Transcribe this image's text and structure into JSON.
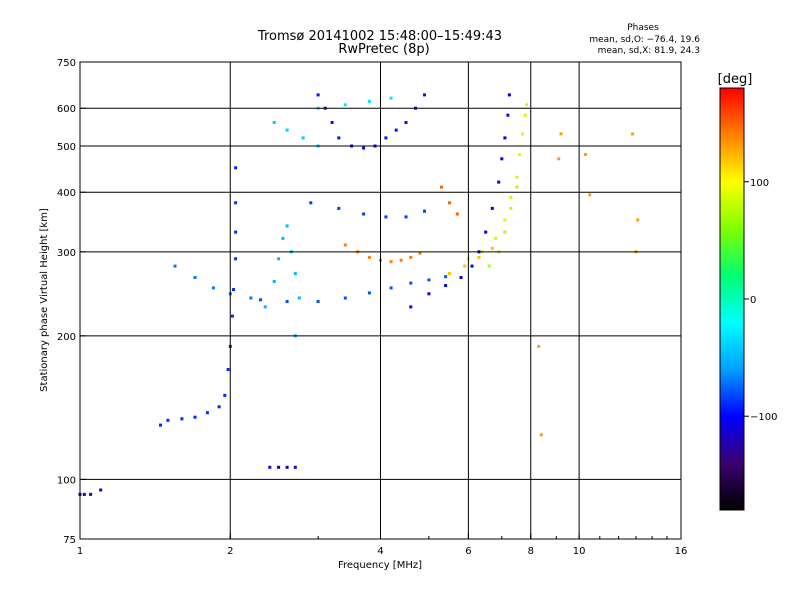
{
  "chart_data": {
    "type": "scatter",
    "title": "Tromsø 20141002 15:48:00–15:49:43",
    "subtitle": "RwPretec (8p)",
    "stats": {
      "heading": "Phases",
      "line1": "mean, sd,O: −76.4, 19.6",
      "line2": "mean, sd,X:  81.9, 24.3"
    },
    "xlabel": "Frequency [MHz]",
    "ylabel": "Stationary phase Virtual Height [km]",
    "x_scale": "log",
    "y_scale": "log",
    "xlim": [
      1,
      16
    ],
    "ylim": [
      75,
      750
    ],
    "x_ticks": [
      1,
      2,
      4,
      6,
      8,
      10,
      16
    ],
    "x_tick_labels": [
      "1",
      "2",
      "4",
      "6",
      "8",
      "10",
      "16"
    ],
    "x_grid": [
      2,
      4,
      6,
      8,
      10
    ],
    "y_ticks": [
      75,
      100,
      200,
      300,
      400,
      500,
      600,
      750
    ],
    "y_tick_labels": [
      "75",
      "100",
      "200",
      "300",
      "400",
      "500",
      "600",
      "750"
    ],
    "y_grid": [
      100,
      200,
      300,
      400,
      500,
      600
    ],
    "grid": true,
    "colorbar": {
      "label": "[deg]",
      "min": -180,
      "max": 180,
      "ticks": [
        100,
        0,
        -100
      ],
      "tick_labels": [
        "100",
        "0",
        "−100"
      ],
      "colors": [
        "#000000",
        "#3a0070",
        "#0000ff",
        "#00a0ff",
        "#00ffff",
        "#00ff70",
        "#80ff00",
        "#ffff00",
        "#ff8000",
        "#ff0000"
      ]
    },
    "series": [
      {
        "phase_deg": -90,
        "points": [
          [
            2.05,
            450
          ],
          [
            2.05,
            380
          ],
          [
            2.05,
            330
          ],
          [
            2.05,
            290
          ],
          [
            2.03,
            250
          ],
          [
            2.02,
            220
          ],
          [
            2.0,
            190
          ],
          [
            1.98,
            170
          ],
          [
            1.95,
            150
          ],
          [
            1.9,
            142
          ],
          [
            1.8,
            138
          ],
          [
            1.7,
            135
          ],
          [
            1.6,
            134
          ],
          [
            1.5,
            133
          ],
          [
            1.45,
            130
          ]
        ]
      },
      {
        "phase_deg": -95,
        "points": [
          [
            3.0,
            640
          ],
          [
            3.1,
            600
          ],
          [
            3.2,
            560
          ],
          [
            3.3,
            520
          ],
          [
            3.5,
            500
          ],
          [
            3.7,
            495
          ],
          [
            3.9,
            500
          ],
          [
            4.1,
            520
          ],
          [
            4.3,
            540
          ],
          [
            4.5,
            560
          ],
          [
            4.7,
            600
          ],
          [
            4.9,
            640
          ]
        ]
      },
      {
        "phase_deg": -105,
        "points": [
          [
            4.6,
            230
          ],
          [
            5.0,
            245
          ],
          [
            5.4,
            255
          ],
          [
            5.8,
            265
          ],
          [
            6.1,
            280
          ],
          [
            6.3,
            300
          ],
          [
            6.5,
            330
          ],
          [
            6.7,
            370
          ],
          [
            6.9,
            420
          ],
          [
            7.0,
            470
          ],
          [
            7.1,
            520
          ],
          [
            7.2,
            580
          ],
          [
            7.25,
            640
          ]
        ]
      },
      {
        "phase_deg": -80,
        "points": [
          [
            2.3,
            238
          ],
          [
            2.6,
            236
          ],
          [
            3.0,
            236
          ],
          [
            3.4,
            240
          ],
          [
            3.8,
            246
          ],
          [
            4.2,
            252
          ],
          [
            4.6,
            258
          ],
          [
            5.0,
            262
          ],
          [
            5.4,
            266
          ]
        ]
      },
      {
        "phase_deg": -70,
        "points": [
          [
            1.55,
            280
          ],
          [
            1.7,
            265
          ],
          [
            1.85,
            252
          ],
          [
            2.0,
            245
          ],
          [
            2.2,
            240
          ]
        ]
      },
      {
        "phase_deg": -50,
        "points": [
          [
            2.35,
            230
          ],
          [
            2.45,
            260
          ],
          [
            2.5,
            290
          ],
          [
            2.55,
            320
          ],
          [
            2.6,
            340
          ],
          [
            2.65,
            300
          ],
          [
            2.7,
            270
          ],
          [
            2.75,
            240
          ],
          [
            2.7,
            200
          ]
        ]
      },
      {
        "phase_deg": -40,
        "points": [
          [
            2.45,
            560
          ],
          [
            2.6,
            540
          ],
          [
            2.8,
            520
          ],
          [
            3.0,
            500
          ]
        ]
      },
      {
        "phase_deg": -30,
        "points": [
          [
            3.0,
            600
          ],
          [
            3.4,
            610
          ],
          [
            3.8,
            620
          ],
          [
            4.2,
            630
          ]
        ]
      },
      {
        "phase_deg": -85,
        "points": [
          [
            2.9,
            380
          ],
          [
            3.3,
            370
          ],
          [
            3.7,
            360
          ],
          [
            4.1,
            355
          ],
          [
            4.5,
            355
          ],
          [
            4.9,
            365
          ]
        ]
      },
      {
        "phase_deg": 140,
        "points": [
          [
            3.4,
            310
          ],
          [
            3.6,
            300
          ],
          [
            3.8,
            292
          ],
          [
            4.0,
            288
          ],
          [
            4.2,
            286
          ],
          [
            4.4,
            288
          ],
          [
            4.6,
            292
          ],
          [
            4.8,
            298
          ]
        ]
      },
      {
        "phase_deg": 150,
        "points": [
          [
            5.3,
            410
          ],
          [
            5.5,
            380
          ],
          [
            5.7,
            360
          ]
        ]
      },
      {
        "phase_deg": 120,
        "points": [
          [
            5.5,
            270
          ],
          [
            5.9,
            280
          ],
          [
            6.3,
            292
          ],
          [
            6.7,
            305
          ]
        ]
      },
      {
        "phase_deg": 85,
        "points": [
          [
            6.0,
            290
          ],
          [
            6.4,
            300
          ],
          [
            6.8,
            320
          ],
          [
            7.1,
            350
          ],
          [
            7.3,
            390
          ],
          [
            7.5,
            430
          ],
          [
            7.6,
            480
          ],
          [
            7.7,
            530
          ],
          [
            7.8,
            580
          ],
          [
            7.85,
            610
          ]
        ]
      },
      {
        "phase_deg": 75,
        "points": [
          [
            6.6,
            280
          ],
          [
            6.9,
            300
          ],
          [
            7.1,
            330
          ],
          [
            7.3,
            370
          ],
          [
            7.5,
            410
          ]
        ]
      },
      {
        "phase_deg": -120,
        "points": [
          [
            1.0,
            93
          ],
          [
            1.02,
            93
          ],
          [
            1.05,
            93
          ],
          [
            1.1,
            95
          ],
          [
            2.4,
            106
          ],
          [
            2.5,
            106
          ],
          [
            2.6,
            106
          ],
          [
            2.7,
            106
          ]
        ]
      },
      {
        "phase_deg": 130,
        "points": [
          [
            8.3,
            190
          ],
          [
            8.4,
            124
          ],
          [
            9.1,
            470
          ],
          [
            9.2,
            530
          ],
          [
            10.3,
            480
          ],
          [
            10.5,
            395
          ],
          [
            12.8,
            530
          ],
          [
            13.0,
            300
          ],
          [
            13.1,
            350
          ]
        ]
      }
    ]
  }
}
